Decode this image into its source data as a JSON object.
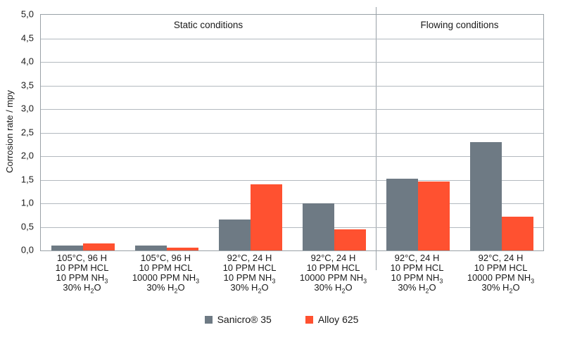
{
  "chart_data": {
    "type": "bar",
    "title": "",
    "xlabel": "",
    "ylabel": "Corrosion rate / mpy",
    "ylim": [
      0,
      5
    ],
    "ytick_step": 0.5,
    "decimal_separator": ",",
    "grid": "horizontal",
    "legend_position": "bottom",
    "sections": [
      {
        "label": "Static conditions",
        "group_count": 4
      },
      {
        "label": "Flowing conditions",
        "group_count": 2
      }
    ],
    "categories": [
      [
        "105°C, 96 H",
        "10 PPM HCL",
        "10 PPM NH_{3}",
        "30% H_{2}O"
      ],
      [
        "105°C, 96 H",
        "10 PPM HCL",
        "10000 PPM NH_{3}",
        "30% H_{2}O"
      ],
      [
        "92°C, 24 H",
        "10 PPM HCL",
        "10 PPM NH_{3}",
        "30% H_{2}O"
      ],
      [
        "92°C, 24 H",
        "10 PPM HCL",
        "10000 PPM NH_{3}",
        "30% H_{2}O"
      ],
      [
        "92°C, 24 H",
        "10 PPM HCL",
        "10 PPM NH_{3}",
        "30% H_{2}O"
      ],
      [
        "92°C, 24 H",
        "10 PPM HCL",
        "10000 PPM NH_{3}",
        "30% H_{2}O"
      ]
    ],
    "series": [
      {
        "name": "Sanicro® 35",
        "color": "#6e7a84",
        "values": [
          0.1,
          0.1,
          0.65,
          1.0,
          1.52,
          2.3
        ]
      },
      {
        "name": "Alloy 625",
        "color": "#ff5130",
        "values": [
          0.15,
          0.06,
          1.4,
          0.45,
          1.46,
          0.72
        ]
      }
    ]
  }
}
